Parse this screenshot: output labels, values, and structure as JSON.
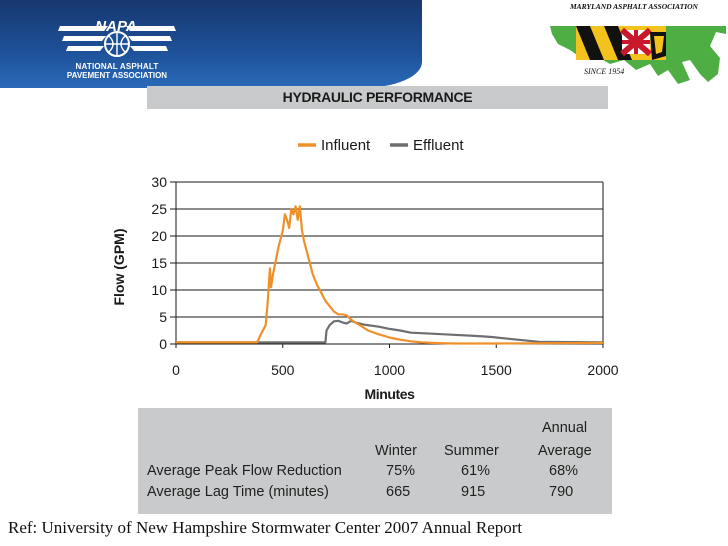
{
  "header": {
    "napa_acronym": "NAPA",
    "napa_line1": "NATIONAL ASPHALT",
    "napa_line2": "PAVEMENT ASSOCIATION",
    "md_name": "MARYLAND ASPHALT ASSOCIATION",
    "md_since": "SINCE 1954"
  },
  "chart_data": {
    "type": "line",
    "title": "HYDRAULIC PERFORMANCE",
    "xlabel": "Minutes",
    "ylabel": "Flow (GPM)",
    "xlim": [
      0,
      2000
    ],
    "ylim": [
      0,
      30
    ],
    "xticks": [
      0,
      500,
      1000,
      1500,
      2000
    ],
    "yticks": [
      0,
      5,
      10,
      15,
      20,
      25,
      30
    ],
    "grid": "horizontal",
    "legend_position": "top",
    "series": [
      {
        "name": "Influent",
        "color": "#f0902a",
        "x": [
          0,
          380,
          400,
          420,
          430,
          440,
          445,
          455,
          465,
          480,
          500,
          510,
          520,
          530,
          540,
          550,
          560,
          570,
          580,
          590,
          600,
          620,
          640,
          660,
          680,
          700,
          720,
          740,
          760,
          780,
          800,
          820,
          840,
          860,
          900,
          950,
          1000,
          1050,
          1100,
          1150,
          1200,
          1300,
          1500,
          2000
        ],
        "y": [
          0.3,
          0.3,
          2,
          3.5,
          8,
          14,
          10.5,
          13,
          15,
          18,
          21,
          24,
          23,
          21.5,
          25,
          24,
          25.5,
          23,
          25.5,
          21,
          19,
          16,
          13,
          11,
          9.5,
          8,
          7,
          6,
          5.5,
          5.5,
          5.3,
          4.5,
          4,
          3.5,
          2.5,
          1.8,
          1.2,
          0.8,
          0.5,
          0.3,
          0.2,
          0.1,
          0.1,
          0.2
        ]
      },
      {
        "name": "Effluent",
        "color": "#6d6e70",
        "x": [
          0,
          700,
          705,
          720,
          740,
          760,
          780,
          800,
          820,
          840,
          880,
          950,
          1000,
          1050,
          1100,
          1200,
          1300,
          1400,
          1480,
          1500,
          1600,
          1700,
          2000
        ],
        "y": [
          0.3,
          0.3,
          2.5,
          3.5,
          4.2,
          4.3,
          4.0,
          3.8,
          4.3,
          4.0,
          3.6,
          3.2,
          2.8,
          2.5,
          2.1,
          1.9,
          1.7,
          1.5,
          1.3,
          1.2,
          0.8,
          0.4,
          0.3
        ]
      }
    ]
  },
  "stats": {
    "header_row": [
      "Winter",
      "Summer",
      "Annual",
      "Average"
    ],
    "rows": [
      {
        "label": "Average Peak Flow Reduction",
        "winter": "75%",
        "summer": "61%",
        "annual": "68%"
      },
      {
        "label": "Average Lag Time (minutes)",
        "winter": "665",
        "summer": "915",
        "annual": "790"
      }
    ]
  },
  "footer": {
    "reference": "Ref: University of New Hampshire Stormwater Center 2007 Annual Report"
  }
}
